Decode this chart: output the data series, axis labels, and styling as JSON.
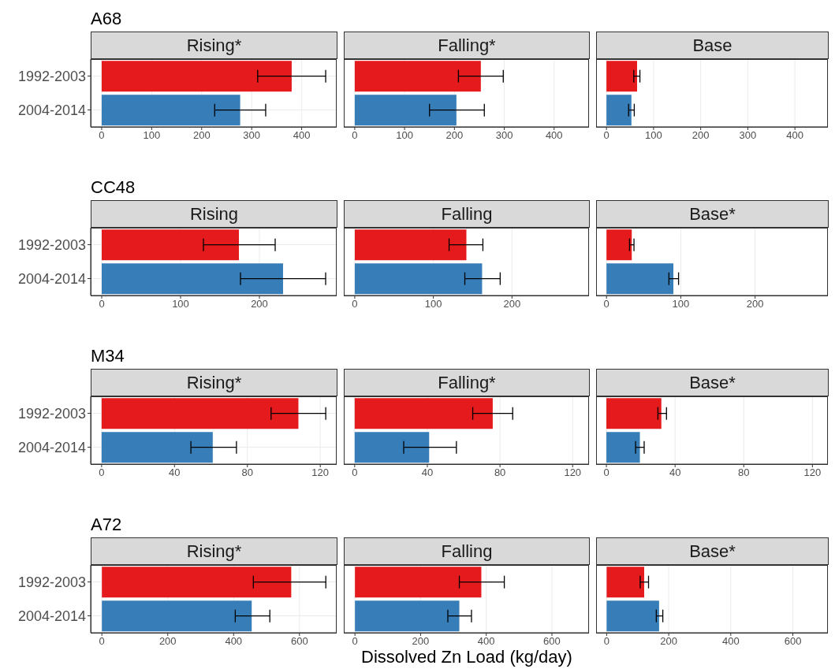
{
  "chart_data": [
    {
      "type": "bar",
      "orientation": "horizontal",
      "title": "A68",
      "subtitle": "Rising*",
      "categories": [
        "1992-2003",
        "2004-2014"
      ],
      "values": [
        380,
        277
      ],
      "errors": [
        [
          312,
          448
        ],
        [
          226,
          328
        ]
      ],
      "colors": [
        "#e41a1c",
        "#377eb8"
      ],
      "xlim": [
        -22,
        470
      ],
      "xticks": [
        0,
        100,
        200,
        300,
        400
      ],
      "grid": true
    },
    {
      "type": "bar",
      "orientation": "horizontal",
      "subtitle": "Falling*",
      "categories": [
        null,
        null
      ],
      "values": [
        253,
        204
      ],
      "errors": [
        [
          208,
          298
        ],
        [
          150,
          260
        ]
      ],
      "colors": [
        "#e41a1c",
        "#377eb8"
      ],
      "xlim": [
        -22,
        470
      ],
      "xticks": [
        0,
        100,
        200,
        300,
        400
      ],
      "grid": true,
      "tick_labels": "x"
    },
    {
      "type": "bar",
      "orientation": "horizontal",
      "subtitle": "Base",
      "categories": [
        null,
        null
      ],
      "values": [
        65,
        53
      ],
      "errors": [
        [
          58,
          71
        ],
        [
          47,
          59
        ]
      ],
      "colors": [
        "#e41a1c",
        "#377eb8"
      ],
      "xlim": [
        -22,
        470
      ],
      "xticks": [
        0,
        100,
        200,
        300,
        400
      ],
      "grid": true,
      "tick_labels": "x"
    },
    {
      "type": "bar",
      "orientation": "horizontal",
      "title": "CC48",
      "subtitle": "Rising",
      "categories": [
        "1992-2003",
        "2004-2014"
      ],
      "values": [
        174,
        230
      ],
      "errors": [
        [
          129,
          220
        ],
        [
          176,
          284
        ]
      ],
      "colors": [
        "#e41a1c",
        "#377eb8"
      ],
      "xlim": [
        -14,
        298
      ],
      "xticks": [
        0,
        100,
        200
      ],
      "grid": true
    },
    {
      "type": "bar",
      "orientation": "horizontal",
      "subtitle": "Falling",
      "categories": [
        null,
        null
      ],
      "values": [
        142,
        162
      ],
      "errors": [
        [
          120,
          163
        ],
        [
          140,
          185
        ]
      ],
      "colors": [
        "#e41a1c",
        "#377eb8"
      ],
      "xlim": [
        -14,
        298
      ],
      "xticks": [
        0,
        100,
        200
      ],
      "grid": true,
      "tick_labels": "x"
    },
    {
      "type": "bar",
      "orientation": "horizontal",
      "subtitle": "Base*",
      "categories": [
        null,
        null
      ],
      "values": [
        34,
        90
      ],
      "errors": [
        [
          31,
          37
        ],
        [
          84,
          97
        ]
      ],
      "colors": [
        "#e41a1c",
        "#377eb8"
      ],
      "xlim": [
        -14,
        298
      ],
      "xticks": [
        0,
        100,
        200
      ],
      "grid": true,
      "tick_labels": "x"
    },
    {
      "type": "bar",
      "orientation": "horizontal",
      "title": "M34",
      "subtitle": "Rising*",
      "categories": [
        "1992-2003",
        "2004-2014"
      ],
      "values": [
        108,
        61
      ],
      "errors": [
        [
          93,
          123
        ],
        [
          49,
          74
        ]
      ],
      "colors": [
        "#e41a1c",
        "#377eb8"
      ],
      "xlim": [
        -6,
        129
      ],
      "xticks": [
        0,
        40,
        80,
        120
      ],
      "grid": true
    },
    {
      "type": "bar",
      "orientation": "horizontal",
      "subtitle": "Falling*",
      "categories": [
        null,
        null
      ],
      "values": [
        76,
        41
      ],
      "errors": [
        [
          65,
          87
        ],
        [
          27,
          56
        ]
      ],
      "colors": [
        "#e41a1c",
        "#377eb8"
      ],
      "xlim": [
        -6,
        129
      ],
      "xticks": [
        0,
        40,
        80,
        120
      ],
      "grid": true,
      "tick_labels": "x"
    },
    {
      "type": "bar",
      "orientation": "horizontal",
      "subtitle": "Base*",
      "categories": [
        null,
        null
      ],
      "values": [
        32,
        19.5
      ],
      "errors": [
        [
          30,
          35
        ],
        [
          17,
          22
        ]
      ],
      "colors": [
        "#e41a1c",
        "#377eb8"
      ],
      "xlim": [
        -6,
        129
      ],
      "xticks": [
        0,
        40,
        80,
        120
      ],
      "grid": true,
      "tick_labels": "x"
    },
    {
      "type": "bar",
      "orientation": "horizontal",
      "title": "A72",
      "subtitle": "Rising*",
      "categories": [
        "1992-2003",
        "2004-2014"
      ],
      "values": [
        575,
        455
      ],
      "errors": [
        [
          460,
          680
        ],
        [
          405,
          510
        ]
      ],
      "colors": [
        "#e41a1c",
        "#377eb8"
      ],
      "xlim": [
        -34,
        713
      ],
      "xticks": [
        0,
        200,
        400,
        600
      ],
      "grid": true
    },
    {
      "type": "bar",
      "orientation": "horizontal",
      "subtitle": "Falling",
      "xlabel": "Dissolved Zn Load (kg/day)",
      "categories": [
        null,
        null
      ],
      "values": [
        385,
        318
      ],
      "errors": [
        [
          318,
          455
        ],
        [
          283,
          355
        ]
      ],
      "colors": [
        "#e41a1c",
        "#377eb8"
      ],
      "xlim": [
        -34,
        713
      ],
      "xticks": [
        0,
        200,
        400,
        600
      ],
      "grid": true,
      "tick_labels": "x"
    },
    {
      "type": "bar",
      "orientation": "horizontal",
      "subtitle": "Base*",
      "categories": [
        null,
        null
      ],
      "values": [
        121,
        169
      ],
      "errors": [
        [
          108,
          135
        ],
        [
          160,
          181
        ]
      ],
      "colors": [
        "#e41a1c",
        "#377eb8"
      ],
      "xlim": [
        -34,
        713
      ],
      "xticks": [
        0,
        200,
        400,
        600
      ],
      "grid": true,
      "tick_labels": "x"
    }
  ]
}
